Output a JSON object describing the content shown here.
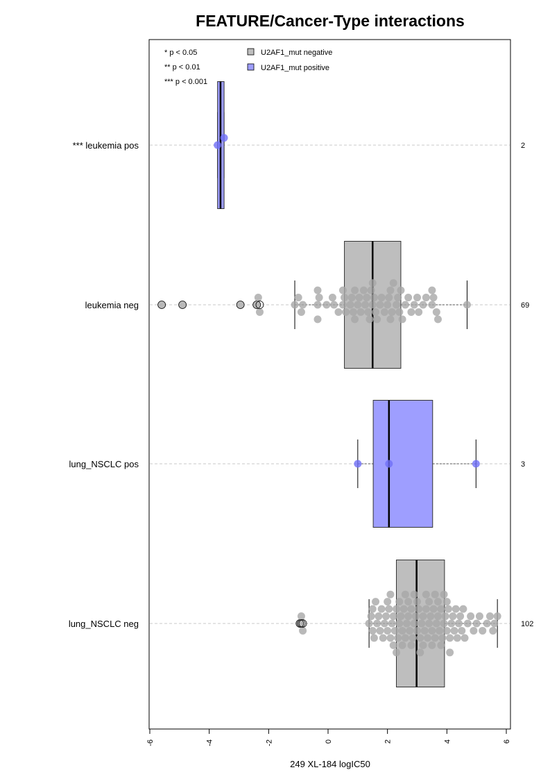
{
  "chart_data": {
    "type": "boxplot",
    "title": "FEATURE/Cancer-Type interactions",
    "xlabel": "249 XL-184 logIC50",
    "xlim": [
      -6,
      6
    ],
    "x_ticks": [
      -6,
      -4,
      -2,
      0,
      2,
      4,
      6
    ],
    "significance_legend": [
      "* p < 0.05",
      "** p < 0.01",
      "*** p < 0.001"
    ],
    "legend": [
      {
        "label": "U2AF1_mut negative",
        "color": "#bebebe"
      },
      {
        "label": "U2AF1_mut positive",
        "color": "#9e9eff"
      }
    ],
    "groups": [
      {
        "label": "*** leukemia pos",
        "count": "2",
        "mutation": "positive",
        "color": "#9e9eff",
        "q1": -3.72,
        "median": -3.62,
        "q3": -3.5,
        "whisker_low": -3.72,
        "whisker_high": -3.5,
        "outliers": [],
        "points": [
          -3.72,
          -3.5
        ]
      },
      {
        "label": "leukemia neg",
        "count": "69",
        "mutation": "negative",
        "color": "#bebebe",
        "q1": 0.55,
        "median": 1.5,
        "q3": 2.45,
        "whisker_low": -1.12,
        "whisker_high": 4.68,
        "outliers": [
          -5.6,
          -4.9,
          -2.95,
          -2.4,
          -2.3
        ],
        "points": [
          -5.6,
          -4.9,
          -2.95,
          -2.4,
          -2.35,
          -2.3,
          -1.12,
          -1.0,
          -0.9,
          -0.85,
          -0.35,
          -0.35,
          -0.35,
          -0.3,
          -0.05,
          0.15,
          0.2,
          0.35,
          0.5,
          0.5,
          0.55,
          0.6,
          0.75,
          0.8,
          0.85,
          0.9,
          0.9,
          1.0,
          1.05,
          1.1,
          1.2,
          1.25,
          1.3,
          1.35,
          1.4,
          1.45,
          1.5,
          1.5,
          1.55,
          1.6,
          1.65,
          1.75,
          1.8,
          1.9,
          2.0,
          2.05,
          2.1,
          2.1,
          2.15,
          2.2,
          2.3,
          2.35,
          2.4,
          2.45,
          2.5,
          2.6,
          2.7,
          2.8,
          2.9,
          3.0,
          3.05,
          3.2,
          3.3,
          3.5,
          3.5,
          3.55,
          3.65,
          3.7,
          4.68
        ]
      },
      {
        "label": "lung_NSCLC pos",
        "count": "3",
        "mutation": "positive",
        "color": "#9e9eff",
        "q1": 1.52,
        "median": 2.05,
        "q3": 3.52,
        "whisker_low": 1.0,
        "whisker_high": 4.98,
        "outliers": [],
        "points": [
          1.0,
          2.05,
          4.98
        ]
      },
      {
        "label": "lung_NSCLC neg",
        "count": "102",
        "mutation": "negative",
        "color": "#bebebe",
        "q1": 2.3,
        "median": 2.98,
        "q3": 3.92,
        "whisker_low": 1.38,
        "whisker_high": 5.7,
        "outliers": [
          -0.95,
          -0.9,
          -0.85
        ],
        "points": [
          -0.95,
          -0.9,
          -0.85,
          1.38,
          1.45,
          1.5,
          1.5,
          1.55,
          1.6,
          1.65,
          1.7,
          1.75,
          1.8,
          1.85,
          1.9,
          1.95,
          2.0,
          2.0,
          2.05,
          2.1,
          2.1,
          2.15,
          2.2,
          2.2,
          2.25,
          2.3,
          2.3,
          2.35,
          2.4,
          2.4,
          2.45,
          2.5,
          2.5,
          2.55,
          2.6,
          2.6,
          2.65,
          2.7,
          2.7,
          2.75,
          2.8,
          2.8,
          2.85,
          2.9,
          2.9,
          2.95,
          3.0,
          3.0,
          3.05,
          3.1,
          3.1,
          3.15,
          3.2,
          3.2,
          3.25,
          3.3,
          3.3,
          3.35,
          3.4,
          3.4,
          3.45,
          3.5,
          3.5,
          3.55,
          3.6,
          3.6,
          3.65,
          3.7,
          3.7,
          3.75,
          3.8,
          3.8,
          3.85,
          3.9,
          3.9,
          3.95,
          4.0,
          4.0,
          4.05,
          4.1,
          4.1,
          4.15,
          4.2,
          4.25,
          4.3,
          4.35,
          4.4,
          4.45,
          4.5,
          4.55,
          4.6,
          4.7,
          4.8,
          4.9,
          5.0,
          5.1,
          5.2,
          5.35,
          5.45,
          5.55,
          5.6,
          5.7
        ]
      }
    ]
  }
}
